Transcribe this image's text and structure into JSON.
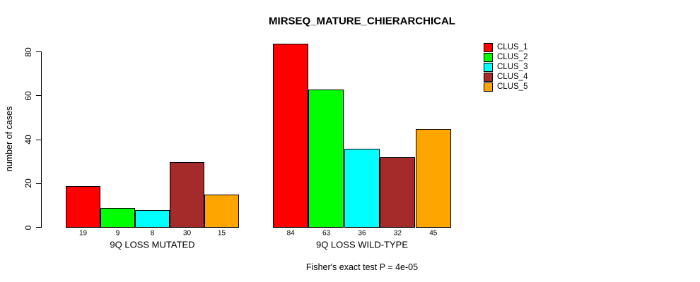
{
  "chart_data": {
    "type": "bar",
    "title": "MIRSEQ_MATURE_CHIERARCHICAL",
    "ylabel": "number of cases",
    "xlabel": "",
    "categories": [
      "9Q LOSS MUTATED",
      "9Q LOSS WILD-TYPE"
    ],
    "series": [
      {
        "name": "CLUS_1",
        "color": "#FF0000",
        "values": [
          19,
          84
        ]
      },
      {
        "name": "CLUS_2",
        "color": "#00FF00",
        "values": [
          9,
          63
        ]
      },
      {
        "name": "CLUS_3",
        "color": "#00FFFF",
        "values": [
          8,
          36
        ]
      },
      {
        "name": "CLUS_4",
        "color": "#A52A2A",
        "values": [
          30,
          32
        ]
      },
      {
        "name": "CLUS_5",
        "color": "#FFA500",
        "values": [
          15,
          45
        ]
      }
    ],
    "yticks": [
      0,
      20,
      40,
      60,
      80
    ],
    "ylim": [
      0,
      84
    ],
    "grid": false,
    "bar_value_labels": true,
    "legend_position": "top-right",
    "annotation": "Fisher's exact test P = 4e-05",
    "axis_color": "#000000",
    "background_color": "#FFFFFF"
  }
}
